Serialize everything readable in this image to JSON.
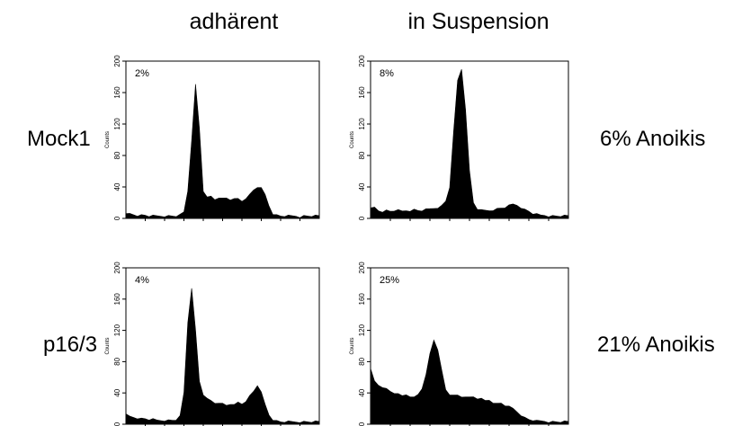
{
  "column_headers": [
    "adhärent",
    "in Suspension"
  ],
  "rows": [
    {
      "label": "Mock1",
      "result": "6% Anoikis"
    },
    {
      "label": "p16/3",
      "result": "21% Anoikis"
    }
  ],
  "chart_data": [
    {
      "type": "area",
      "row": "Mock1",
      "column": "adhärent",
      "annotation": "2%",
      "ylabel": "Counts",
      "yticks": [
        "0",
        "40",
        "80",
        "120",
        "160",
        "200"
      ],
      "ylim": [
        0,
        200
      ],
      "xlim": [
        0,
        100
      ],
      "x": [
        0,
        2,
        4,
        6,
        8,
        10,
        12,
        14,
        16,
        18,
        20,
        22,
        24,
        26,
        28,
        30,
        32,
        34,
        36,
        38,
        40,
        42,
        44,
        46,
        48,
        50,
        52,
        54,
        56,
        58,
        60,
        62,
        64,
        66,
        68,
        70,
        72,
        74,
        76,
        78,
        80,
        82,
        84,
        86,
        88,
        90,
        92,
        94,
        96,
        98,
        100
      ],
      "values": [
        5,
        6,
        5,
        4,
        4,
        4,
        3,
        3,
        3,
        3,
        3,
        3,
        3,
        3,
        4,
        8,
        35,
        100,
        170,
        115,
        35,
        26,
        28,
        24,
        27,
        25,
        26,
        24,
        24,
        25,
        22,
        26,
        30,
        36,
        40,
        38,
        30,
        16,
        6,
        4,
        3,
        3,
        3,
        3,
        3,
        2,
        3,
        3,
        3,
        3,
        3
      ]
    },
    {
      "type": "area",
      "row": "Mock1",
      "column": "in Suspension",
      "annotation": "8%",
      "ylabel": "Counts",
      "yticks": [
        "0",
        "40",
        "80",
        "120",
        "160",
        "200"
      ],
      "ylim": [
        0,
        200
      ],
      "xlim": [
        0,
        100
      ],
      "x": [
        0,
        2,
        4,
        6,
        8,
        10,
        12,
        14,
        16,
        18,
        20,
        22,
        24,
        26,
        28,
        30,
        32,
        34,
        36,
        38,
        40,
        42,
        44,
        46,
        48,
        50,
        52,
        54,
        56,
        58,
        60,
        62,
        64,
        66,
        68,
        70,
        72,
        74,
        76,
        78,
        80,
        82,
        84,
        86,
        88,
        90,
        92,
        94,
        96,
        98,
        100
      ],
      "values": [
        12,
        14,
        10,
        9,
        10,
        9,
        10,
        10,
        9,
        10,
        10,
        11,
        10,
        10,
        11,
        12,
        13,
        14,
        16,
        22,
        40,
        110,
        175,
        190,
        140,
        60,
        20,
        12,
        10,
        10,
        10,
        11,
        12,
        13,
        14,
        16,
        18,
        17,
        14,
        11,
        9,
        6,
        5,
        4,
        4,
        3,
        3,
        3,
        3,
        3,
        3
      ]
    },
    {
      "type": "area",
      "row": "p16/3",
      "column": "adhärent",
      "annotation": "4%",
      "ylabel": "Counts",
      "yticks": [
        "0",
        "40",
        "80",
        "120",
        "160",
        "200"
      ],
      "ylim": [
        0,
        200
      ],
      "xlim": [
        0,
        100
      ],
      "x": [
        0,
        2,
        4,
        6,
        8,
        10,
        12,
        14,
        16,
        18,
        20,
        22,
        24,
        26,
        28,
        30,
        32,
        34,
        36,
        38,
        40,
        42,
        44,
        46,
        48,
        50,
        52,
        54,
        56,
        58,
        60,
        62,
        64,
        66,
        68,
        70,
        72,
        74,
        76,
        78,
        80,
        82,
        84,
        86,
        88,
        90,
        92,
        94,
        96,
        98,
        100
      ],
      "values": [
        12,
        10,
        9,
        8,
        7,
        7,
        6,
        6,
        5,
        5,
        5,
        5,
        5,
        6,
        10,
        40,
        130,
        175,
        120,
        55,
        38,
        32,
        30,
        27,
        28,
        26,
        24,
        26,
        24,
        28,
        26,
        30,
        36,
        42,
        50,
        40,
        25,
        12,
        6,
        4,
        3,
        3,
        3,
        3,
        3,
        3,
        3,
        3,
        3,
        3,
        3
      ]
    },
    {
      "type": "area",
      "row": "p16/3",
      "column": "in Suspension",
      "annotation": "25%",
      "ylabel": "Counts",
      "yticks": [
        "0",
        "40",
        "80",
        "120",
        "160",
        "200"
      ],
      "ylim": [
        0,
        200
      ],
      "xlim": [
        0,
        100
      ],
      "x": [
        0,
        2,
        4,
        6,
        8,
        10,
        12,
        14,
        16,
        18,
        20,
        22,
        24,
        26,
        28,
        30,
        32,
        34,
        36,
        38,
        40,
        42,
        44,
        46,
        48,
        50,
        52,
        54,
        56,
        58,
        60,
        62,
        64,
        66,
        68,
        70,
        72,
        74,
        76,
        78,
        80,
        82,
        84,
        86,
        88,
        90,
        92,
        94,
        96,
        98,
        100
      ],
      "values": [
        70,
        55,
        50,
        48,
        45,
        42,
        40,
        38,
        36,
        38,
        36,
        34,
        38,
        46,
        62,
        90,
        108,
        96,
        68,
        44,
        38,
        36,
        37,
        35,
        36,
        34,
        35,
        33,
        32,
        30,
        31,
        28,
        26,
        27,
        24,
        22,
        20,
        16,
        12,
        8,
        6,
        5,
        4,
        4,
        4,
        3,
        3,
        3,
        3,
        3,
        3
      ]
    }
  ]
}
